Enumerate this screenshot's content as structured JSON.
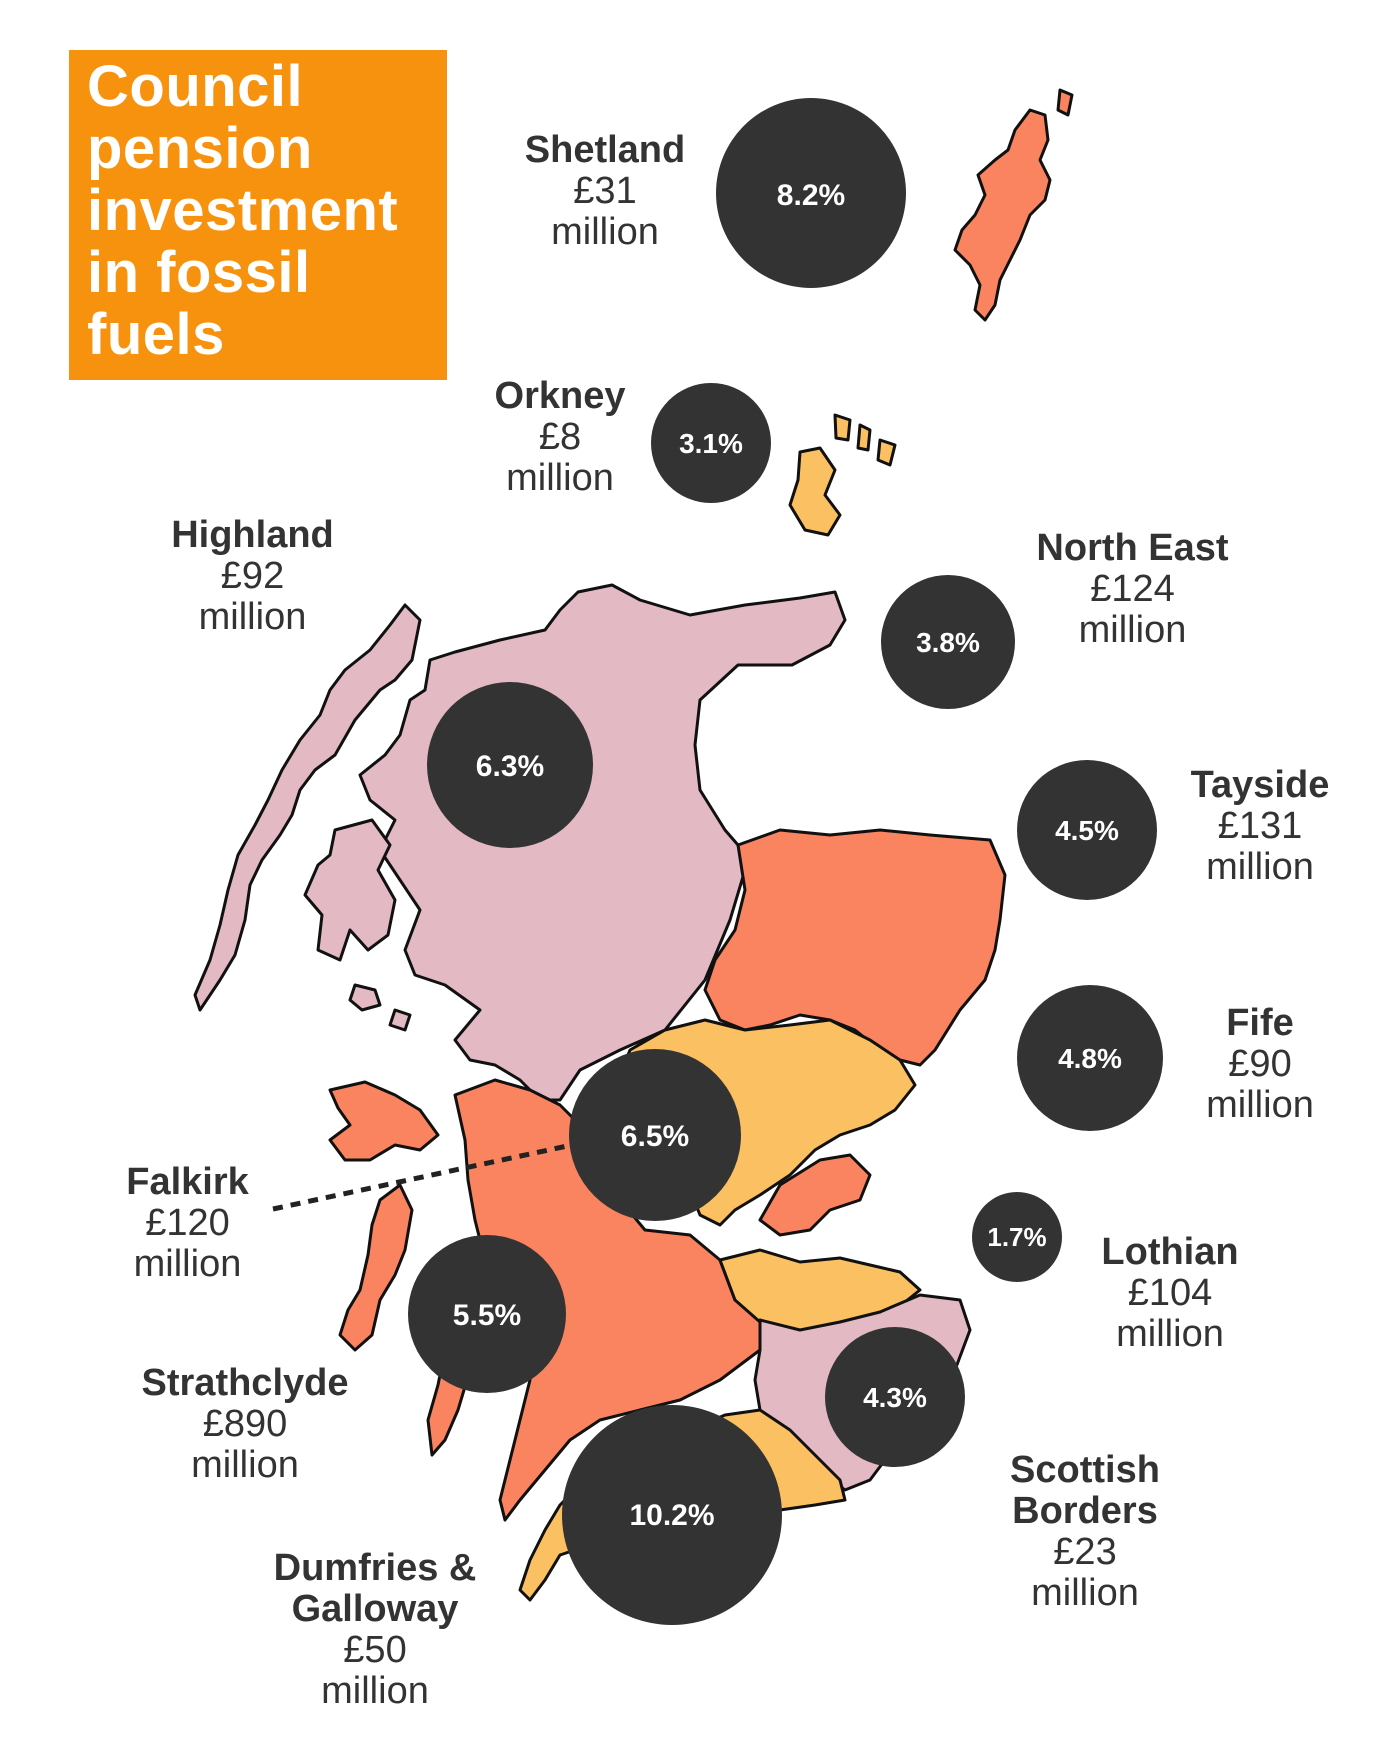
{
  "title": {
    "lines": [
      "Council",
      "pension",
      "investment",
      "in fossil",
      "fuels"
    ]
  },
  "colors": {
    "title_bg": "#F7920F",
    "circle": "#333333",
    "highland_pink": "#E3BAC3",
    "orange_red": "#FB8460",
    "light_orange": "#FBC062",
    "outline": "#111111"
  },
  "regions": [
    {
      "name": "Shetland",
      "amount": "£31",
      "unit": "million",
      "percent": "8.2%"
    },
    {
      "name": "Orkney",
      "amount": "£8",
      "unit": "million",
      "percent": "3.1%"
    },
    {
      "name": "Highland",
      "amount": "£92",
      "unit": "million",
      "percent": "6.3%"
    },
    {
      "name": "North East",
      "amount": "£124",
      "unit": "million",
      "percent": "3.8%"
    },
    {
      "name": "Tayside",
      "amount": "£131",
      "unit": "million",
      "percent": "4.5%"
    },
    {
      "name": "Fife",
      "amount": "£90",
      "unit": "million",
      "percent": "4.8%"
    },
    {
      "name": "Falkirk",
      "amount": "£120",
      "unit": "million",
      "percent": "6.5%"
    },
    {
      "name": "Lothian",
      "amount": "£104",
      "unit": "million",
      "percent": "1.7%"
    },
    {
      "name": "Strathclyde",
      "amount": "£890",
      "unit": "million",
      "percent": "5.5%"
    },
    {
      "name": "Scottish Borders",
      "name_lines": [
        "Scottish",
        "Borders"
      ],
      "amount": "£23",
      "unit": "million",
      "percent": "4.3%"
    },
    {
      "name": "Dumfries & Galloway",
      "name_lines": [
        "Dumfries &",
        "Galloway"
      ],
      "amount": "£50",
      "unit": "million",
      "percent": "10.2%"
    }
  ]
}
